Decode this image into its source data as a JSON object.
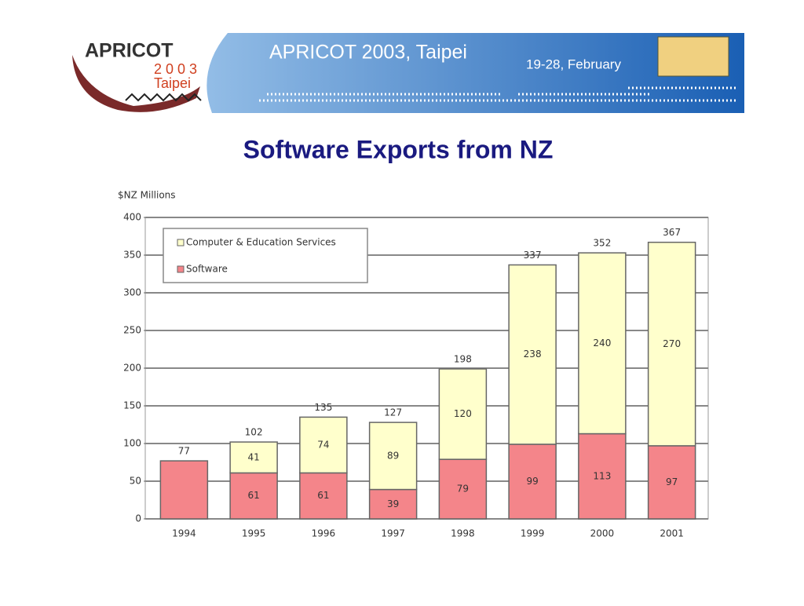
{
  "header": {
    "logo": "APRICOT",
    "logo_year": "2 0 0 3",
    "logo_city": "Taipei",
    "title": "APRICOT 2003, Taipei",
    "dates": "19-28, February"
  },
  "chart_data": {
    "type": "stacked_bar",
    "title": "Software Exports from NZ",
    "y_label": "$NZ Millions",
    "categories": [
      "1994",
      "1995",
      "1996",
      "1997",
      "1998",
      "1999",
      "2000",
      "2001"
    ],
    "series": [
      {
        "name": "Software",
        "color": "#f4858a",
        "values": [
          77,
          61,
          61,
          39,
          79,
          99,
          113,
          97
        ]
      },
      {
        "name": "Computer & Education Services",
        "color": "#ffffcc",
        "values": [
          null,
          41,
          74,
          89,
          120,
          238,
          240,
          270
        ]
      }
    ],
    "totals": [
      77,
      102,
      135,
      127,
      198,
      337,
      352,
      367
    ],
    "ylim": [
      0,
      400
    ],
    "yticks": [
      0,
      50,
      100,
      150,
      200,
      250,
      300,
      350,
      400
    ],
    "grid": true,
    "legend": "top-left"
  }
}
